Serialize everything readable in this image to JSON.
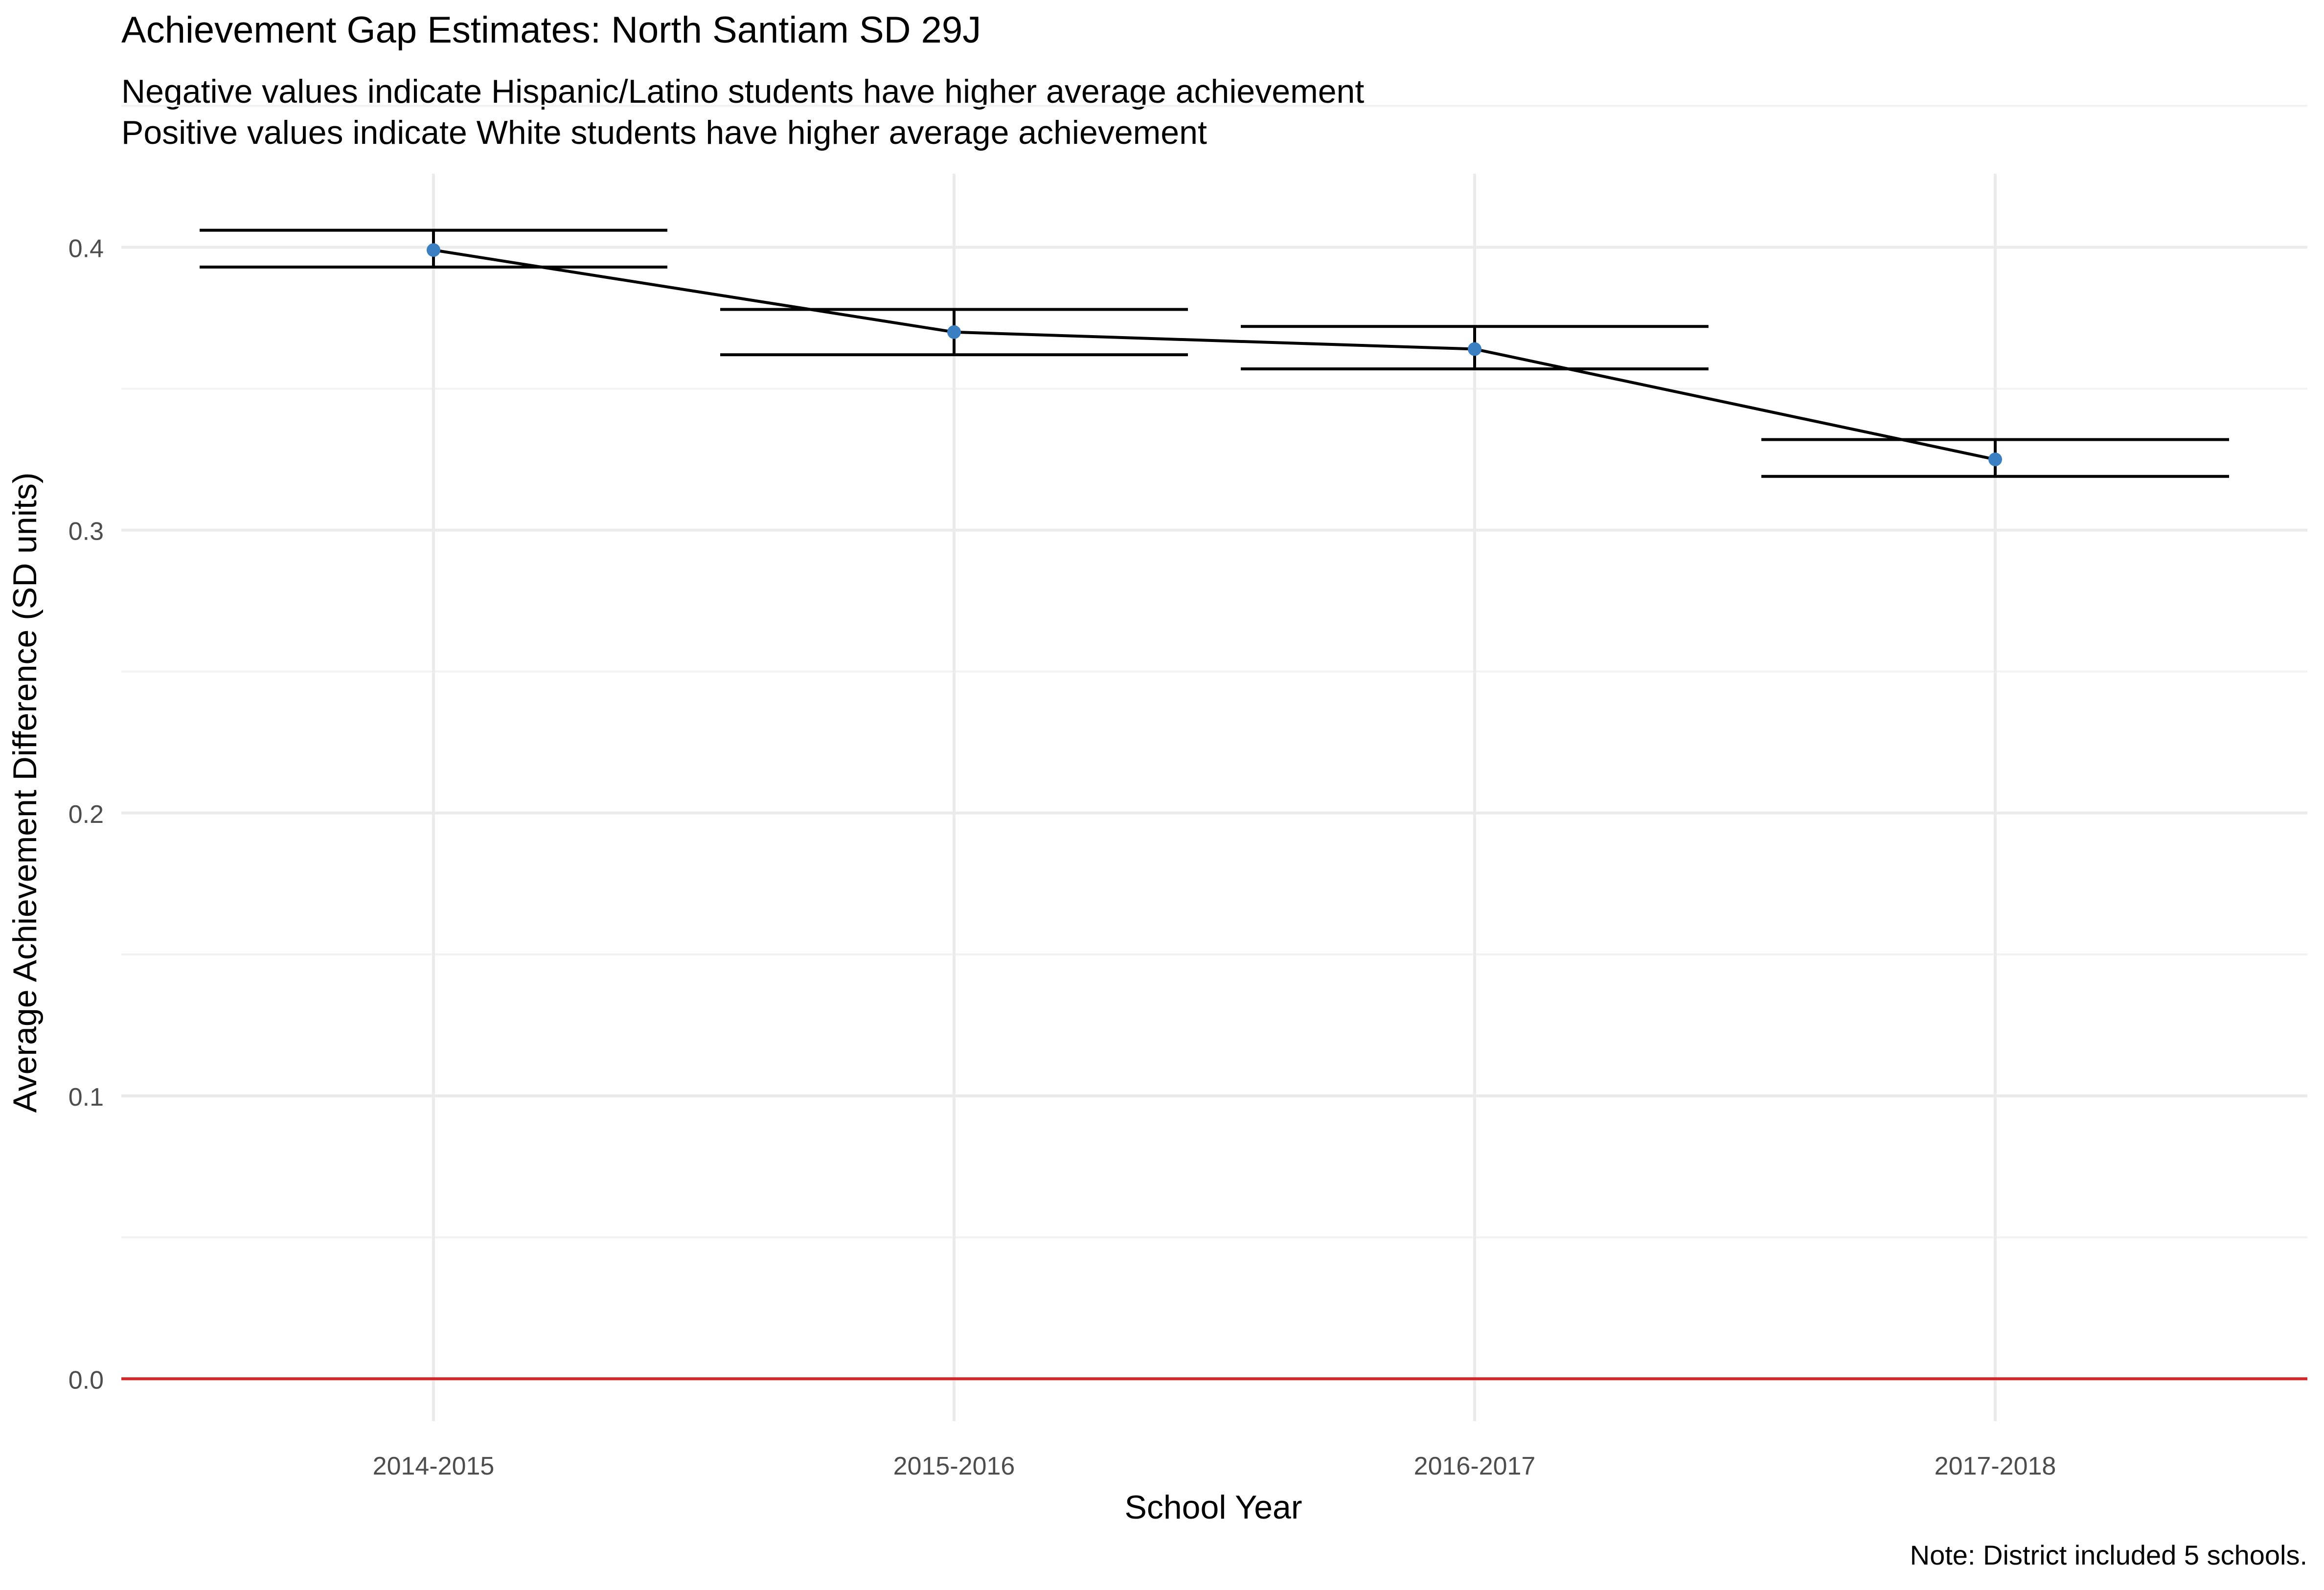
{
  "chart_data": {
    "type": "line",
    "title": "Achievement Gap Estimates: North Santiam SD 29J",
    "subtitle": [
      "Negative values indicate Hispanic/Latino students have higher average achievement",
      "Positive values indicate White students have higher average achievement"
    ],
    "caption": "Note: District included 5 schools.",
    "xlabel": "School Year",
    "ylabel": "Average Achievement Difference (SD units)",
    "categories": [
      "2014-2015",
      "2015-2016",
      "2016-2017",
      "2017-2018"
    ],
    "series": [
      {
        "values": [
          0.399,
          0.37,
          0.364,
          0.325
        ],
        "error_lower": [
          0.393,
          0.362,
          0.357,
          0.319
        ],
        "error_upper": [
          0.406,
          0.378,
          0.372,
          0.332
        ]
      }
    ],
    "y_ticks": [
      "0.0",
      "0.1",
      "0.2",
      "0.3",
      "0.4"
    ],
    "ylim": [
      -0.015,
      0.426
    ],
    "reference_line": {
      "y": 0,
      "color": "#d62728"
    },
    "point_color": "#3a7fc1",
    "line_color": "#000000",
    "grid": true,
    "legend": false
  }
}
